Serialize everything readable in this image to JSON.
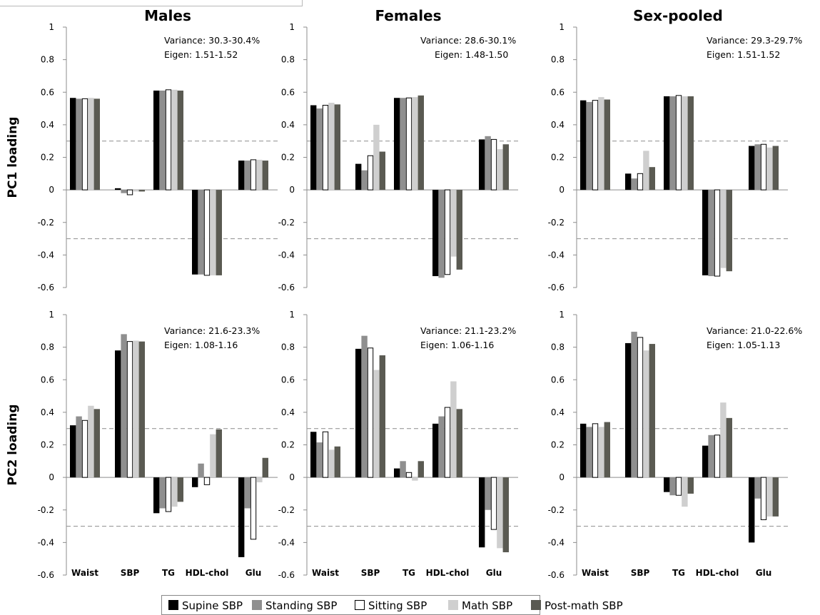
{
  "legend": [
    {
      "label": "Supine SBP",
      "color": "#000000",
      "stroke": "#000000"
    },
    {
      "label": "Standing SBP",
      "color": "#8f8f8f",
      "stroke": "#8f8f8f"
    },
    {
      "label": "Sitting SBP",
      "color": "#ffffff",
      "stroke": "#000000"
    },
    {
      "label": "Math SBP",
      "color": "#cfcfcf",
      "stroke": "#cfcfcf"
    },
    {
      "label": "Post-math SBP",
      "color": "#5a5a52",
      "stroke": "#5a5a52"
    }
  ],
  "highlight_color": "#d0021b",
  "threshold_color": "#9a9a9a",
  "chart_data": [
    {
      "type": "bar",
      "title": "Males",
      "ylabel": "PC1 loading",
      "ylim": [
        -0.6,
        1
      ],
      "yticks": [
        "1",
        "0.8",
        "0.6",
        "0.4",
        "0.2",
        "0",
        "-0.2",
        "-0.4",
        "-0.6"
      ],
      "categories": [
        "Waist",
        "SBP",
        "TG",
        "HDL-chol",
        "Glu"
      ],
      "show_category_labels": false,
      "highlight_category": "Waist",
      "thresholds": [
        0.3,
        -0.3
      ],
      "annotation": [
        "Variance: 30.3-30.4%",
        "Eigen: 1.51-1.52"
      ],
      "series": [
        {
          "name": "Supine SBP",
          "values": [
            0.565,
            0.01,
            0.61,
            -0.52,
            0.18
          ]
        },
        {
          "name": "Standing SBP",
          "values": [
            0.56,
            -0.02,
            0.61,
            -0.52,
            0.18
          ]
        },
        {
          "name": "Sitting SBP",
          "values": [
            0.56,
            -0.03,
            0.615,
            -0.525,
            0.185
          ]
        },
        {
          "name": "Math SBP",
          "values": [
            0.565,
            -0.01,
            0.615,
            -0.525,
            0.185
          ]
        },
        {
          "name": "Post-math SBP",
          "values": [
            0.56,
            -0.01,
            0.61,
            -0.525,
            0.18
          ]
        }
      ]
    },
    {
      "type": "bar",
      "title": "Females",
      "ylabel": "",
      "ylim": [
        -0.6,
        1
      ],
      "yticks": [
        "1",
        "0.8",
        "0.6",
        "0.4",
        "0.2",
        "0",
        "-0.2",
        "-0.4",
        "-0.6"
      ],
      "categories": [
        "Waist",
        "SBP",
        "TG",
        "HDL-chol",
        "Glu"
      ],
      "show_category_labels": false,
      "highlight_category": "Waist",
      "thresholds": [
        0.3,
        -0.3
      ],
      "annotation": [
        "Variance: 28.6-30.1%",
        "Eigen: 1.48-1.50"
      ],
      "series": [
        {
          "name": "Supine SBP",
          "values": [
            0.52,
            0.16,
            0.565,
            -0.53,
            0.31
          ]
        },
        {
          "name": "Standing SBP",
          "values": [
            0.5,
            0.12,
            0.565,
            -0.54,
            0.33
          ]
        },
        {
          "name": "Sitting SBP",
          "values": [
            0.52,
            0.21,
            0.565,
            -0.52,
            0.31
          ]
        },
        {
          "name": "Math SBP",
          "values": [
            0.535,
            0.4,
            0.57,
            -0.41,
            0.25
          ]
        },
        {
          "name": "Post-math SBP",
          "values": [
            0.525,
            0.235,
            0.58,
            -0.49,
            0.28
          ]
        }
      ]
    },
    {
      "type": "bar",
      "title": "Sex-pooled",
      "ylabel": "",
      "ylim": [
        -0.6,
        1
      ],
      "yticks": [
        "1",
        "0.8",
        "0.6",
        "0.4",
        "0.2",
        "0",
        "-0.2",
        "-0.4",
        "-0.6"
      ],
      "categories": [
        "Waist",
        "SBP",
        "TG",
        "HDL-chol",
        "Glu"
      ],
      "show_category_labels": false,
      "highlight_category": "Waist",
      "thresholds": [
        0.3,
        -0.3
      ],
      "annotation": [
        "Variance: 29.3-29.7%",
        "Eigen: 1.51-1.52"
      ],
      "series": [
        {
          "name": "Supine SBP",
          "values": [
            0.55,
            0.1,
            0.575,
            -0.525,
            0.27
          ]
        },
        {
          "name": "Standing SBP",
          "values": [
            0.54,
            0.07,
            0.575,
            -0.53,
            0.28
          ]
        },
        {
          "name": "Sitting SBP",
          "values": [
            0.55,
            0.1,
            0.58,
            -0.53,
            0.28
          ]
        },
        {
          "name": "Math SBP",
          "values": [
            0.57,
            0.24,
            0.575,
            -0.48,
            0.26
          ]
        },
        {
          "name": "Post-math SBP",
          "values": [
            0.555,
            0.14,
            0.575,
            -0.5,
            0.27
          ]
        }
      ]
    },
    {
      "type": "bar",
      "title": "",
      "ylabel": "PC2 loading",
      "ylim": [
        -0.6,
        1
      ],
      "yticks": [
        "1",
        "0.8",
        "0.6",
        "0.4",
        "0.2",
        "0",
        "-0.2",
        "-0.4",
        "-0.6"
      ],
      "categories": [
        "Waist",
        "SBP",
        "TG",
        "HDL-chol",
        "Glu"
      ],
      "show_category_labels": true,
      "highlight_category": "Waist",
      "thresholds": [
        0.3,
        -0.3
      ],
      "annotation": [
        "Variance: 21.6-23.3%",
        "Eigen: 1.08-1.16"
      ],
      "series": [
        {
          "name": "Supine SBP",
          "values": [
            0.32,
            0.78,
            -0.22,
            -0.06,
            -0.49
          ]
        },
        {
          "name": "Standing SBP",
          "values": [
            0.375,
            0.88,
            -0.19,
            0.085,
            -0.19
          ]
        },
        {
          "name": "Sitting SBP",
          "values": [
            0.35,
            0.835,
            -0.21,
            -0.045,
            -0.38
          ]
        },
        {
          "name": "Math SBP",
          "values": [
            0.44,
            0.84,
            -0.18,
            0.265,
            -0.03
          ]
        },
        {
          "name": "Post-math SBP",
          "values": [
            0.42,
            0.835,
            -0.15,
            0.295,
            0.12
          ]
        }
      ]
    },
    {
      "type": "bar",
      "title": "",
      "ylabel": "",
      "ylim": [
        -0.6,
        1
      ],
      "yticks": [
        "1",
        "0.8",
        "0.6",
        "0.4",
        "0.2",
        "0",
        "-0.2",
        "-0.4",
        "-0.6"
      ],
      "categories": [
        "Waist",
        "SBP",
        "TG",
        "HDL-chol",
        "Glu"
      ],
      "show_category_labels": true,
      "highlight_category": "Waist",
      "thresholds": [
        0.3,
        -0.3
      ],
      "annotation": [
        "Variance: 21.1-23.2%",
        "Eigen: 1.06-1.16"
      ],
      "series": [
        {
          "name": "Supine SBP",
          "values": [
            0.28,
            0.79,
            0.055,
            0.33,
            -0.43
          ]
        },
        {
          "name": "Standing SBP",
          "values": [
            0.215,
            0.87,
            0.1,
            0.375,
            -0.2
          ]
        },
        {
          "name": "Sitting SBP",
          "values": [
            0.28,
            0.795,
            0.03,
            0.43,
            -0.32
          ]
        },
        {
          "name": "Math SBP",
          "values": [
            0.17,
            0.66,
            -0.02,
            0.59,
            -0.435
          ]
        },
        {
          "name": "Post-math SBP",
          "values": [
            0.19,
            0.75,
            0.1,
            0.42,
            -0.46
          ]
        }
      ]
    },
    {
      "type": "bar",
      "title": "",
      "ylabel": "",
      "ylim": [
        -0.6,
        1
      ],
      "yticks": [
        "1",
        "0.8",
        "0.6",
        "0.4",
        "0.2",
        "0",
        "-0.2",
        "-0.4",
        "-0.6"
      ],
      "categories": [
        "Waist",
        "SBP",
        "TG",
        "HDL-chol",
        "Glu"
      ],
      "show_category_labels": true,
      "highlight_category": "Waist",
      "thresholds": [
        0.3,
        -0.3
      ],
      "annotation": [
        "Variance: 21.0-22.6%",
        "Eigen: 1.05-1.13"
      ],
      "series": [
        {
          "name": "Supine SBP",
          "values": [
            0.33,
            0.825,
            -0.09,
            0.195,
            -0.4
          ]
        },
        {
          "name": "Standing SBP",
          "values": [
            0.31,
            0.895,
            -0.11,
            0.26,
            -0.13
          ]
        },
        {
          "name": "Sitting SBP",
          "values": [
            0.33,
            0.86,
            -0.11,
            0.26,
            -0.26
          ]
        },
        {
          "name": "Math SBP",
          "values": [
            0.31,
            0.78,
            -0.18,
            0.46,
            -0.24
          ]
        },
        {
          "name": "Post-math SBP",
          "values": [
            0.34,
            0.82,
            -0.1,
            0.365,
            -0.24
          ]
        }
      ]
    }
  ]
}
